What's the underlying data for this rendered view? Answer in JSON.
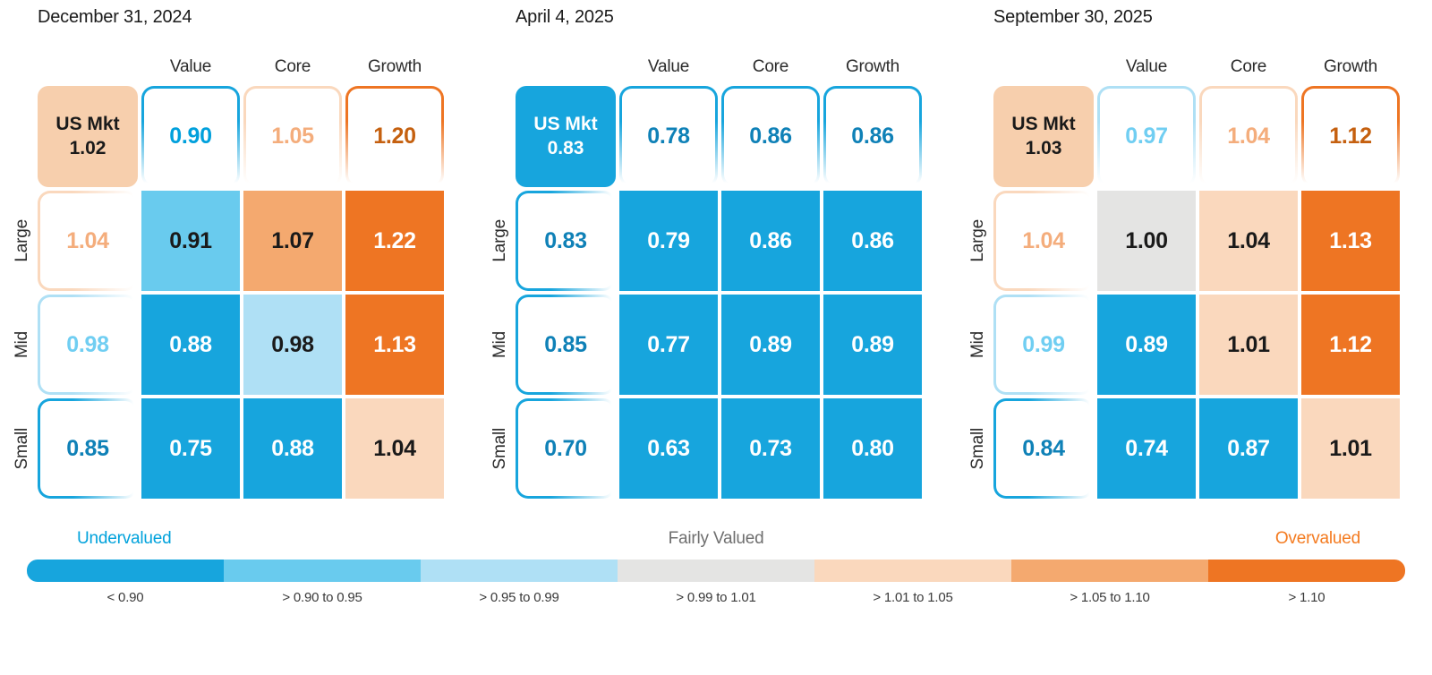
{
  "chart_data": [
    {
      "type": "heatmap",
      "title": "December 31, 2024",
      "columns": [
        "Value",
        "Core",
        "Growth"
      ],
      "rows": [
        "Large",
        "Mid",
        "Small"
      ],
      "us_mkt": {
        "label": "US Mkt",
        "value": "1.02",
        "bucket": "b5"
      },
      "col_totals": [
        {
          "value": "0.90",
          "bucket": "b1"
        },
        {
          "value": "1.05",
          "bucket": "b5"
        },
        {
          "value": "1.20",
          "bucket": "b7"
        }
      ],
      "row_totals": [
        {
          "value": "1.04",
          "bucket": "b5"
        },
        {
          "value": "0.98",
          "bucket": "b3"
        },
        {
          "value": "0.85",
          "bucket": "b1d"
        }
      ],
      "cells": [
        [
          {
            "value": "0.91",
            "bucket": "b2"
          },
          {
            "value": "1.07",
            "bucket": "b6"
          },
          {
            "value": "1.22",
            "bucket": "b7"
          }
        ],
        [
          {
            "value": "0.88",
            "bucket": "b1"
          },
          {
            "value": "0.98",
            "bucket": "b3"
          },
          {
            "value": "1.13",
            "bucket": "b7"
          }
        ],
        [
          {
            "value": "0.75",
            "bucket": "b1"
          },
          {
            "value": "0.88",
            "bucket": "b1"
          },
          {
            "value": "1.04",
            "bucket": "b5"
          }
        ]
      ]
    },
    {
      "type": "heatmap",
      "title": "April 4, 2025",
      "columns": [
        "Value",
        "Core",
        "Growth"
      ],
      "rows": [
        "Large",
        "Mid",
        "Small"
      ],
      "us_mkt": {
        "label": "US Mkt",
        "value": "0.83",
        "bucket": "b1"
      },
      "col_totals": [
        {
          "value": "0.78",
          "bucket": "b1d"
        },
        {
          "value": "0.86",
          "bucket": "b1d"
        },
        {
          "value": "0.86",
          "bucket": "b1d"
        }
      ],
      "row_totals": [
        {
          "value": "0.83",
          "bucket": "b1d"
        },
        {
          "value": "0.85",
          "bucket": "b1d"
        },
        {
          "value": "0.70",
          "bucket": "b1d"
        }
      ],
      "cells": [
        [
          {
            "value": "0.79",
            "bucket": "b1"
          },
          {
            "value": "0.86",
            "bucket": "b1"
          },
          {
            "value": "0.86",
            "bucket": "b1"
          }
        ],
        [
          {
            "value": "0.77",
            "bucket": "b1"
          },
          {
            "value": "0.89",
            "bucket": "b1"
          },
          {
            "value": "0.89",
            "bucket": "b1"
          }
        ],
        [
          {
            "value": "0.63",
            "bucket": "b1"
          },
          {
            "value": "0.73",
            "bucket": "b1"
          },
          {
            "value": "0.80",
            "bucket": "b1"
          }
        ]
      ]
    },
    {
      "type": "heatmap",
      "title": "September 30, 2025",
      "columns": [
        "Value",
        "Core",
        "Growth"
      ],
      "rows": [
        "Large",
        "Mid",
        "Small"
      ],
      "us_mkt": {
        "label": "US Mkt",
        "value": "1.03",
        "bucket": "b5"
      },
      "col_totals": [
        {
          "value": "0.97",
          "bucket": "b3"
        },
        {
          "value": "1.04",
          "bucket": "b5"
        },
        {
          "value": "1.12",
          "bucket": "b7"
        }
      ],
      "row_totals": [
        {
          "value": "1.04",
          "bucket": "b5"
        },
        {
          "value": "0.99",
          "bucket": "b3"
        },
        {
          "value": "0.84",
          "bucket": "b1d"
        }
      ],
      "cells": [
        [
          {
            "value": "1.00",
            "bucket": "b4"
          },
          {
            "value": "1.04",
            "bucket": "b5"
          },
          {
            "value": "1.13",
            "bucket": "b7"
          }
        ],
        [
          {
            "value": "0.89",
            "bucket": "b1"
          },
          {
            "value": "1.01",
            "bucket": "b5"
          },
          {
            "value": "1.12",
            "bucket": "b7"
          }
        ],
        [
          {
            "value": "0.74",
            "bucket": "b1"
          },
          {
            "value": "0.87",
            "bucket": "b1"
          },
          {
            "value": "1.01",
            "bucket": "b5"
          }
        ]
      ]
    }
  ],
  "legend": {
    "undervalued_label": "Undervalued",
    "fairly_valued_label": "Fairly Valued",
    "overvalued_label": "Overvalued",
    "undervalued_color": "#00A2DC",
    "fairly_valued_color": "#6F6F6F",
    "overvalued_color": "#F47B20",
    "segments": [
      {
        "label": "< 0.90",
        "bucket": "b1",
        "color": "#17A5DD"
      },
      {
        "label": "> 0.90 to 0.95",
        "bucket": "b2",
        "color": "#69CBEE"
      },
      {
        "label": "> 0.95 to 0.99",
        "bucket": "b3",
        "color": "#AFE0F5"
      },
      {
        "label": "> 0.99 to 1.01",
        "bucket": "b4",
        "color": "#E4E4E3"
      },
      {
        "label": "> 1.01 to 1.05",
        "bucket": "b5",
        "color": "#FAD8BD"
      },
      {
        "label": "> 1.05 to 1.10",
        "bucket": "b6",
        "color": "#F4A96F"
      },
      {
        "label": "> 1.10",
        "bucket": "b7",
        "color": "#EE7523"
      }
    ]
  }
}
